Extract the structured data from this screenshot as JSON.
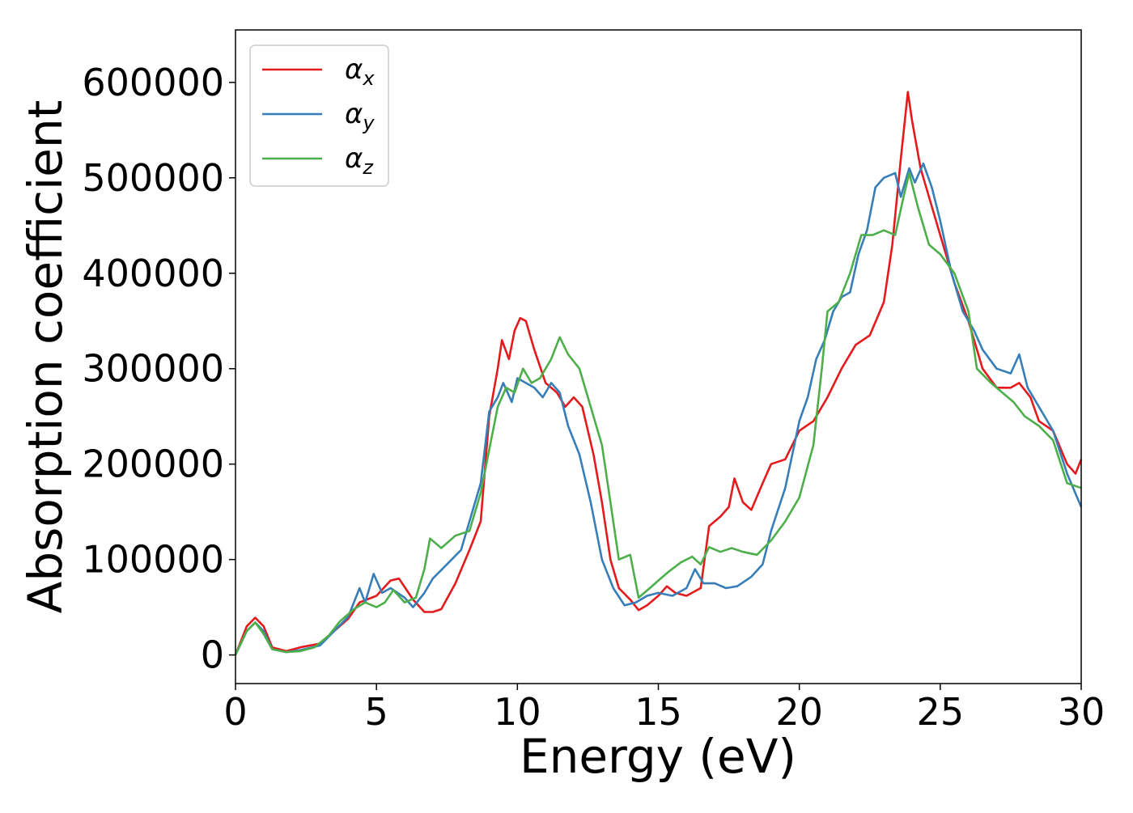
{
  "chart_data": {
    "type": "line",
    "title": "",
    "xlabel": "Energy (eV)",
    "ylabel": "Absorption coefficient",
    "xlim": [
      0,
      30
    ],
    "ylim": [
      -30000,
      655000
    ],
    "xticks": [
      0,
      5,
      10,
      15,
      20,
      25,
      30
    ],
    "yticks": [
      0,
      100000,
      200000,
      300000,
      400000,
      500000,
      600000
    ],
    "grid": false,
    "legend_position": "top-left",
    "colors": {
      "alpha_x": "#e41a1c",
      "alpha_y": "#377eb8",
      "alpha_z": "#4daf4a"
    },
    "series": [
      {
        "name": "αx",
        "base": "α",
        "sub": "x",
        "color": "#e41a1c",
        "points": [
          [
            0,
            0
          ],
          [
            0.4,
            30000
          ],
          [
            0.7,
            39000
          ],
          [
            1.0,
            30000
          ],
          [
            1.3,
            8000
          ],
          [
            1.8,
            4000
          ],
          [
            2.3,
            8000
          ],
          [
            3.0,
            12000
          ],
          [
            3.5,
            25000
          ],
          [
            4.0,
            38000
          ],
          [
            4.4,
            55000
          ],
          [
            5.0,
            62000
          ],
          [
            5.5,
            78000
          ],
          [
            5.8,
            80000
          ],
          [
            6.3,
            58000
          ],
          [
            6.7,
            45000
          ],
          [
            7.0,
            45000
          ],
          [
            7.3,
            48000
          ],
          [
            7.8,
            75000
          ],
          [
            8.3,
            110000
          ],
          [
            8.7,
            140000
          ],
          [
            9.0,
            250000
          ],
          [
            9.3,
            300000
          ],
          [
            9.45,
            330000
          ],
          [
            9.7,
            310000
          ],
          [
            9.9,
            340000
          ],
          [
            10.1,
            353000
          ],
          [
            10.3,
            350000
          ],
          [
            10.6,
            320000
          ],
          [
            11.0,
            285000
          ],
          [
            11.4,
            275000
          ],
          [
            11.7,
            260000
          ],
          [
            12.0,
            270000
          ],
          [
            12.3,
            260000
          ],
          [
            12.7,
            210000
          ],
          [
            13.0,
            160000
          ],
          [
            13.3,
            100000
          ],
          [
            13.6,
            70000
          ],
          [
            14.0,
            58000
          ],
          [
            14.3,
            47000
          ],
          [
            14.6,
            52000
          ],
          [
            15.0,
            62000
          ],
          [
            15.3,
            72000
          ],
          [
            15.6,
            65000
          ],
          [
            16.0,
            62000
          ],
          [
            16.5,
            70000
          ],
          [
            16.8,
            135000
          ],
          [
            17.2,
            145000
          ],
          [
            17.5,
            155000
          ],
          [
            17.7,
            185000
          ],
          [
            18.0,
            160000
          ],
          [
            18.3,
            152000
          ],
          [
            18.7,
            180000
          ],
          [
            19.0,
            200000
          ],
          [
            19.5,
            205000
          ],
          [
            20.0,
            235000
          ],
          [
            20.5,
            245000
          ],
          [
            21.0,
            270000
          ],
          [
            21.5,
            300000
          ],
          [
            22.0,
            325000
          ],
          [
            22.5,
            335000
          ],
          [
            23.0,
            370000
          ],
          [
            23.3,
            430000
          ],
          [
            23.6,
            520000
          ],
          [
            23.85,
            590000
          ],
          [
            24.0,
            560000
          ],
          [
            24.3,
            510000
          ],
          [
            24.7,
            470000
          ],
          [
            25.0,
            440000
          ],
          [
            25.5,
            390000
          ],
          [
            26.0,
            350000
          ],
          [
            26.5,
            300000
          ],
          [
            27.0,
            280000
          ],
          [
            27.5,
            280000
          ],
          [
            27.8,
            285000
          ],
          [
            28.2,
            270000
          ],
          [
            28.5,
            245000
          ],
          [
            29.0,
            235000
          ],
          [
            29.5,
            200000
          ],
          [
            29.8,
            190000
          ],
          [
            30.0,
            205000
          ]
        ]
      },
      {
        "name": "αy",
        "base": "α",
        "sub": "y",
        "color": "#377eb8",
        "points": [
          [
            0,
            0
          ],
          [
            0.4,
            25000
          ],
          [
            0.7,
            34000
          ],
          [
            1.0,
            25000
          ],
          [
            1.3,
            6000
          ],
          [
            1.8,
            3000
          ],
          [
            2.3,
            5000
          ],
          [
            3.0,
            10000
          ],
          [
            3.5,
            25000
          ],
          [
            4.0,
            40000
          ],
          [
            4.4,
            70000
          ],
          [
            4.6,
            55000
          ],
          [
            4.9,
            85000
          ],
          [
            5.2,
            65000
          ],
          [
            5.5,
            70000
          ],
          [
            6.0,
            60000
          ],
          [
            6.3,
            50000
          ],
          [
            6.7,
            65000
          ],
          [
            7.0,
            80000
          ],
          [
            7.5,
            95000
          ],
          [
            8.0,
            110000
          ],
          [
            8.3,
            140000
          ],
          [
            8.7,
            180000
          ],
          [
            9.0,
            255000
          ],
          [
            9.3,
            270000
          ],
          [
            9.5,
            285000
          ],
          [
            9.8,
            265000
          ],
          [
            10.0,
            290000
          ],
          [
            10.3,
            285000
          ],
          [
            10.6,
            280000
          ],
          [
            10.9,
            270000
          ],
          [
            11.2,
            285000
          ],
          [
            11.5,
            275000
          ],
          [
            11.8,
            240000
          ],
          [
            12.2,
            210000
          ],
          [
            12.6,
            160000
          ],
          [
            13.0,
            100000
          ],
          [
            13.4,
            70000
          ],
          [
            13.8,
            52000
          ],
          [
            14.2,
            55000
          ],
          [
            14.6,
            62000
          ],
          [
            15.0,
            65000
          ],
          [
            15.5,
            62000
          ],
          [
            16.0,
            70000
          ],
          [
            16.3,
            90000
          ],
          [
            16.6,
            75000
          ],
          [
            17.0,
            75000
          ],
          [
            17.4,
            70000
          ],
          [
            17.8,
            72000
          ],
          [
            18.3,
            82000
          ],
          [
            18.7,
            95000
          ],
          [
            19.0,
            130000
          ],
          [
            19.5,
            175000
          ],
          [
            20.0,
            245000
          ],
          [
            20.3,
            270000
          ],
          [
            20.6,
            310000
          ],
          [
            20.9,
            330000
          ],
          [
            21.2,
            360000
          ],
          [
            21.5,
            375000
          ],
          [
            21.8,
            380000
          ],
          [
            22.1,
            420000
          ],
          [
            22.4,
            445000
          ],
          [
            22.7,
            490000
          ],
          [
            23.0,
            500000
          ],
          [
            23.4,
            505000
          ],
          [
            23.6,
            480000
          ],
          [
            23.9,
            510000
          ],
          [
            24.1,
            495000
          ],
          [
            24.4,
            515000
          ],
          [
            24.7,
            490000
          ],
          [
            25.0,
            455000
          ],
          [
            25.4,
            400000
          ],
          [
            25.8,
            360000
          ],
          [
            26.2,
            340000
          ],
          [
            26.5,
            320000
          ],
          [
            27.0,
            300000
          ],
          [
            27.5,
            295000
          ],
          [
            27.8,
            315000
          ],
          [
            28.1,
            280000
          ],
          [
            28.5,
            260000
          ],
          [
            29.0,
            235000
          ],
          [
            29.5,
            190000
          ],
          [
            30.0,
            155000
          ]
        ]
      },
      {
        "name": "αz",
        "base": "α",
        "sub": "z",
        "color": "#4daf4a",
        "points": [
          [
            0,
            0
          ],
          [
            0.4,
            25000
          ],
          [
            0.7,
            34000
          ],
          [
            1.0,
            22000
          ],
          [
            1.3,
            6000
          ],
          [
            1.8,
            3000
          ],
          [
            2.3,
            4000
          ],
          [
            2.8,
            8000
          ],
          [
            3.3,
            20000
          ],
          [
            3.7,
            35000
          ],
          [
            4.2,
            48000
          ],
          [
            4.6,
            55000
          ],
          [
            5.0,
            50000
          ],
          [
            5.3,
            55000
          ],
          [
            5.6,
            68000
          ],
          [
            6.0,
            55000
          ],
          [
            6.4,
            60000
          ],
          [
            6.7,
            90000
          ],
          [
            6.9,
            122000
          ],
          [
            7.3,
            112000
          ],
          [
            7.8,
            125000
          ],
          [
            8.3,
            130000
          ],
          [
            8.7,
            170000
          ],
          [
            9.0,
            215000
          ],
          [
            9.3,
            260000
          ],
          [
            9.6,
            280000
          ],
          [
            9.9,
            275000
          ],
          [
            10.2,
            300000
          ],
          [
            10.5,
            285000
          ],
          [
            10.8,
            290000
          ],
          [
            11.2,
            310000
          ],
          [
            11.5,
            333000
          ],
          [
            11.8,
            315000
          ],
          [
            12.2,
            300000
          ],
          [
            12.6,
            260000
          ],
          [
            13.0,
            220000
          ],
          [
            13.3,
            160000
          ],
          [
            13.6,
            100000
          ],
          [
            14.0,
            105000
          ],
          [
            14.3,
            60000
          ],
          [
            14.7,
            70000
          ],
          [
            15.0,
            78000
          ],
          [
            15.4,
            88000
          ],
          [
            15.8,
            97000
          ],
          [
            16.2,
            103000
          ],
          [
            16.5,
            95000
          ],
          [
            16.8,
            113000
          ],
          [
            17.2,
            108000
          ],
          [
            17.6,
            112000
          ],
          [
            18.0,
            108000
          ],
          [
            18.5,
            105000
          ],
          [
            19.0,
            120000
          ],
          [
            19.5,
            140000
          ],
          [
            20.0,
            165000
          ],
          [
            20.5,
            220000
          ],
          [
            20.8,
            300000
          ],
          [
            21.0,
            360000
          ],
          [
            21.4,
            370000
          ],
          [
            21.8,
            400000
          ],
          [
            22.2,
            440000
          ],
          [
            22.6,
            440000
          ],
          [
            23.0,
            445000
          ],
          [
            23.4,
            440000
          ],
          [
            23.7,
            480000
          ],
          [
            23.9,
            505000
          ],
          [
            24.2,
            470000
          ],
          [
            24.6,
            430000
          ],
          [
            25.0,
            420000
          ],
          [
            25.5,
            400000
          ],
          [
            26.0,
            360000
          ],
          [
            26.3,
            300000
          ],
          [
            26.8,
            285000
          ],
          [
            27.2,
            275000
          ],
          [
            27.6,
            265000
          ],
          [
            28.0,
            250000
          ],
          [
            28.5,
            240000
          ],
          [
            29.0,
            225000
          ],
          [
            29.5,
            180000
          ],
          [
            30.0,
            175000
          ]
        ]
      }
    ]
  }
}
